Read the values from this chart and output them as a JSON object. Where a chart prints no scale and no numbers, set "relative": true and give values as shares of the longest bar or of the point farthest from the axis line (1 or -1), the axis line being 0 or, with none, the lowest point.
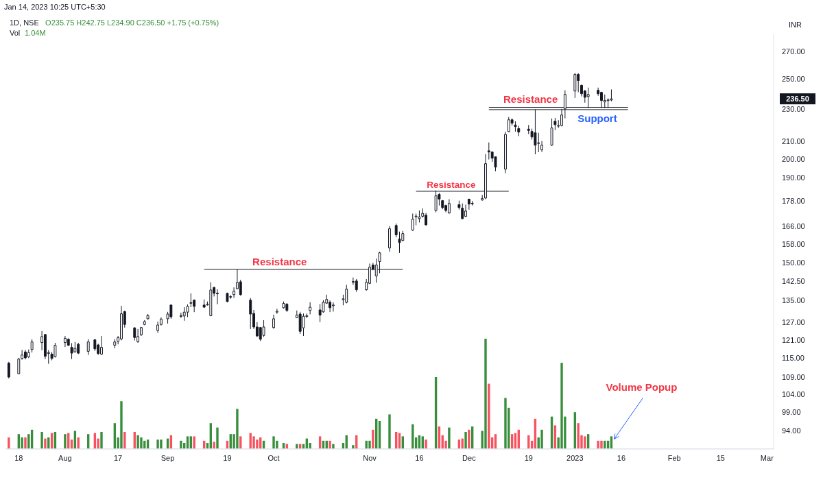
{
  "chart_data": [
    {
      "type": "candlestick",
      "title": "1D, NSE",
      "subtitle": "O235.75 H242.75 L234.90 C236.50 +1.75 (+0.75%)",
      "ylabel": "INR",
      "log": true,
      "xlim": [
        "2022-07-14",
        "2023-03-03"
      ],
      "ylim": [
        89.3,
        283
      ],
      "xticks": [
        {
          "value": "2022-07-18",
          "label": "18"
        },
        {
          "value": "2022-08-01",
          "label": "Aug"
        },
        {
          "value": "2022-08-17",
          "label": "17"
        },
        {
          "value": "2022-09-01",
          "label": "Sep"
        },
        {
          "value": "2022-09-19",
          "label": "19"
        },
        {
          "value": "2022-10-03",
          "label": "Oct"
        },
        {
          "value": "2022-11-01",
          "label": "Nov"
        },
        {
          "value": "2022-11-16",
          "label": "16"
        },
        {
          "value": "2022-12-01",
          "label": "Dec"
        },
        {
          "value": "2022-12-19",
          "label": "19"
        },
        {
          "value": "2023-01-02",
          "label": "2023"
        },
        {
          "value": "2023-01-16",
          "label": "16"
        },
        {
          "value": "2023-02-01",
          "label": "Feb"
        },
        {
          "value": "2023-02-15",
          "label": "15"
        },
        {
          "value": "2023-03-01",
          "label": "Mar"
        }
      ],
      "yticks": [
        {
          "value": 94,
          "label": "94.00"
        },
        {
          "value": 99,
          "label": "99.00"
        },
        {
          "value": 104,
          "label": "104.00"
        },
        {
          "value": 109,
          "label": "109.00"
        },
        {
          "value": 115,
          "label": "115.00"
        },
        {
          "value": 121,
          "label": "121.00"
        },
        {
          "value": 127,
          "label": "127.00"
        },
        {
          "value": 135,
          "label": "135.00"
        },
        {
          "value": 142.5,
          "label": "142.50"
        },
        {
          "value": 150,
          "label": "150.00"
        },
        {
          "value": 158,
          "label": "158.00"
        },
        {
          "value": 166,
          "label": "166.00"
        },
        {
          "value": 178,
          "label": "178.00"
        },
        {
          "value": 190,
          "label": "190.00"
        },
        {
          "value": 200,
          "label": "200.00"
        },
        {
          "value": 210,
          "label": "210.00"
        },
        {
          "value": 230,
          "label": "230.00"
        },
        {
          "value": 250,
          "label": "250.00"
        },
        {
          "value": 270,
          "label": "270.00"
        }
      ],
      "x": [
        "2022-07-15",
        "2022-07-18",
        "2022-07-19",
        "2022-07-20",
        "2022-07-21",
        "2022-07-22",
        "2022-07-25",
        "2022-07-26",
        "2022-07-27",
        "2022-07-28",
        "2022-07-29",
        "2022-08-01",
        "2022-08-02",
        "2022-08-03",
        "2022-08-04",
        "2022-08-05",
        "2022-08-08",
        "2022-08-10",
        "2022-08-11",
        "2022-08-12",
        "2022-08-16",
        "2022-08-17",
        "2022-08-18",
        "2022-08-19",
        "2022-08-22",
        "2022-08-23",
        "2022-08-24",
        "2022-08-25",
        "2022-08-26",
        "2022-08-29",
        "2022-08-30",
        "2022-09-01",
        "2022-09-02",
        "2022-09-05",
        "2022-09-06",
        "2022-09-07",
        "2022-09-08",
        "2022-09-09",
        "2022-09-12",
        "2022-09-13",
        "2022-09-14",
        "2022-09-15",
        "2022-09-16",
        "2022-09-19",
        "2022-09-20",
        "2022-09-21",
        "2022-09-22",
        "2022-09-23",
        "2022-09-26",
        "2022-09-27",
        "2022-09-28",
        "2022-09-29",
        "2022-09-30",
        "2022-10-03",
        "2022-10-04",
        "2022-10-06",
        "2022-10-07",
        "2022-10-10",
        "2022-10-11",
        "2022-10-12",
        "2022-10-13",
        "2022-10-14",
        "2022-10-17",
        "2022-10-18",
        "2022-10-19",
        "2022-10-20",
        "2022-10-21",
        "2022-10-24",
        "2022-10-25",
        "2022-10-27",
        "2022-10-28",
        "2022-10-31",
        "2022-11-01",
        "2022-11-02",
        "2022-11-03",
        "2022-11-04",
        "2022-11-07",
        "2022-11-09",
        "2022-11-10",
        "2022-11-11",
        "2022-11-14",
        "2022-11-15",
        "2022-11-16",
        "2022-11-17",
        "2022-11-18",
        "2022-11-21",
        "2022-11-22",
        "2022-11-23",
        "2022-11-24",
        "2022-11-25",
        "2022-11-28",
        "2022-11-29",
        "2022-11-30",
        "2022-12-01",
        "2022-12-02",
        "2022-12-05",
        "2022-12-06",
        "2022-12-07",
        "2022-12-08",
        "2022-12-09",
        "2022-12-12",
        "2022-12-13",
        "2022-12-14",
        "2022-12-15",
        "2022-12-16",
        "2022-12-19",
        "2022-12-20",
        "2022-12-21",
        "2022-12-22",
        "2022-12-23",
        "2022-12-26",
        "2022-12-27",
        "2022-12-28",
        "2022-12-29",
        "2022-12-30",
        "2023-01-02",
        "2023-01-03",
        "2023-01-04",
        "2023-01-05",
        "2023-01-06",
        "2023-01-09",
        "2023-01-10",
        "2023-01-11",
        "2023-01-12",
        "2023-01-13"
      ],
      "ohlc": [
        [
          113.4,
          113.8,
          108.7,
          109.1
        ],
        [
          110.1,
          115.1,
          110.1,
          114.7
        ],
        [
          114.9,
          117.6,
          114.5,
          116.0
        ],
        [
          117.0,
          117.6,
          114.6,
          115.1
        ],
        [
          115.4,
          117.8,
          115.0,
          116.8
        ],
        [
          117.8,
          121.2,
          116.8,
          120.3
        ],
        [
          120.1,
          124.0,
          117.5,
          122.1
        ],
        [
          122.8,
          123.0,
          114.7,
          115.6
        ],
        [
          116.5,
          117.6,
          113.2,
          116.8
        ],
        [
          116.3,
          117.0,
          114.3,
          114.9
        ],
        [
          115.5,
          120.0,
          115.2,
          119.2
        ],
        [
          120.1,
          122.3,
          118.6,
          121.5
        ],
        [
          121.2,
          121.5,
          118.9,
          119.2
        ],
        [
          118.5,
          119.9,
          114.7,
          116.6
        ],
        [
          117.0,
          120.3,
          116.8,
          118.2
        ],
        [
          119.5,
          120.0,
          116.3,
          116.6
        ],
        [
          117.2,
          121.2,
          116.0,
          120.3
        ],
        [
          121.0,
          121.3,
          117.3,
          118.0
        ],
        [
          119.3,
          119.7,
          116.0,
          116.5
        ],
        [
          116.3,
          122.3,
          116.0,
          118.5
        ],
        [
          119.2,
          121.2,
          118.2,
          120.3
        ],
        [
          120.5,
          122.3,
          119.5,
          121.7
        ],
        [
          121.3,
          133.0,
          120.8,
          130.1
        ],
        [
          130.9,
          131.2,
          125.2,
          126.3
        ],
        [
          125.1,
          125.3,
          120.8,
          121.8
        ],
        [
          120.4,
          124.7,
          120.0,
          122.1
        ],
        [
          122.7,
          125.4,
          122.3,
          125.2
        ],
        [
          126.3,
          127.8,
          126.0,
          127.3
        ],
        [
          128.3,
          130.0,
          128.0,
          129.5
        ],
        [
          124.2,
          127.3,
          123.4,
          126.1
        ],
        [
          126.3,
          128.8,
          125.9,
          128.2
        ],
        [
          128.3,
          130.8,
          126.6,
          130.0
        ],
        [
          133.3,
          133.5,
          128.3,
          129.0
        ],
        [
          129.2,
          130.5,
          128.6,
          129.4
        ],
        [
          129.3,
          132.5,
          127.6,
          130.7
        ],
        [
          130.7,
          133.5,
          128.9,
          132.8
        ],
        [
          134.0,
          137.7,
          132.5,
          134.2
        ],
        [
          135.1,
          135.4,
          130.7,
          132.8
        ],
        [
          133.3,
          135.4,
          132.3,
          132.5
        ],
        [
          133.5,
          134.6,
          133.1,
          133.6
        ],
        [
          129.4,
          142.0,
          129.2,
          139.0
        ],
        [
          140.0,
          140.2,
          136.5,
          137.7
        ],
        [
          137.5,
          139.3,
          133.6,
          137.8
        ],
        [
          137.7,
          138.0,
          134.3,
          134.6
        ],
        [
          136.3,
          137.0,
          135.6,
          136.5
        ],
        [
          137.2,
          140.0,
          136.0,
          138.5
        ],
        [
          139.5,
          147.2,
          139.3,
          141.9
        ],
        [
          142.2,
          143.0,
          136.8,
          137.2
        ],
        [
          135.1,
          135.9,
          124.7,
          130.0
        ],
        [
          130.2,
          131.5,
          124.7,
          125.4
        ],
        [
          125.4,
          127.1,
          122.0,
          122.3
        ],
        [
          125.2,
          125.4,
          120.6,
          121.2
        ],
        [
          122.5,
          127.8,
          122.0,
          125.4
        ],
        [
          125.2,
          129.8,
          124.8,
          128.3
        ],
        [
          130.7,
          131.9,
          130.1,
          131.0
        ],
        [
          132.3,
          134.6,
          132.0,
          133.9
        ],
        [
          133.6,
          134.0,
          130.8,
          131.3
        ],
        [
          128.7,
          131.3,
          128.5,
          129.6
        ],
        [
          130.0,
          130.8,
          123.0,
          123.9
        ],
        [
          125.1,
          130.2,
          122.3,
          129.2
        ],
        [
          129.1,
          130.2,
          128.6,
          129.4
        ],
        [
          131.3,
          134.3,
          129.9,
          132.5
        ],
        [
          131.5,
          133.7,
          127.1,
          129.6
        ],
        [
          130.8,
          135.1,
          130.5,
          134.3
        ],
        [
          134.0,
          137.2,
          133.7,
          135.4
        ],
        [
          134.3,
          135.0,
          130.7,
          132.3
        ],
        [
          133.2,
          134.3,
          130.9,
          133.3
        ],
        [
          135.3,
          137.2,
          133.2,
          135.6
        ],
        [
          134.3,
          141.0,
          133.9,
          139.3
        ],
        [
          142.0,
          143.9,
          141.0,
          142.3
        ],
        [
          142.5,
          143.3,
          138.3,
          139.1
        ],
        [
          139.1,
          143.3,
          138.7,
          142.0
        ],
        [
          141.6,
          149.6,
          141.3,
          148.1
        ],
        [
          149.0,
          149.9,
          146.8,
          147.3
        ],
        [
          144.5,
          151.7,
          141.8,
          149.0
        ],
        [
          150.4,
          154.6,
          145.6,
          154.1
        ],
        [
          156.2,
          166.0,
          154.6,
          164.8
        ],
        [
          166.3,
          167.2,
          160.9,
          162.0
        ],
        [
          160.1,
          163.5,
          154.1,
          158.6
        ],
        [
          159.5,
          163.8,
          159.1,
          162.6
        ],
        [
          164.2,
          171.9,
          163.8,
          169.2
        ],
        [
          170.4,
          171.9,
          166.4,
          170.7
        ],
        [
          169.5,
          173.4,
          167.7,
          170.3
        ],
        [
          170.6,
          174.4,
          170.0,
          172.0
        ],
        [
          171.1,
          172.2,
          166.2,
          166.6
        ],
        [
          173.4,
          183.3,
          172.5,
          180.6
        ],
        [
          181.3,
          182.0,
          175.8,
          179.0
        ],
        [
          178.2,
          178.5,
          174.0,
          174.8
        ],
        [
          175.8,
          176.2,
          172.5,
          173.4
        ],
        [
          172.2,
          178.9,
          171.8,
          176.8
        ],
        [
          176.2,
          178.2,
          173.8,
          174.8
        ],
        [
          174.5,
          176.8,
          169.2,
          169.5
        ],
        [
          170.6,
          176.2,
          170.3,
          173.1
        ],
        [
          178.9,
          179.2,
          173.8,
          176.5
        ],
        [
          176.7,
          178.0,
          175.8,
          176.9
        ],
        [
          178.5,
          181.0,
          178.2,
          179.2
        ],
        [
          179.5,
          202.8,
          178.9,
          197.5
        ],
        [
          204.7,
          209.5,
          199.8,
          204.0
        ],
        [
          204.0,
          204.3,
          198.5,
          200.5
        ],
        [
          201.3,
          201.3,
          193.4,
          195.6
        ],
        [
          194.5,
          215.8,
          192.3,
          214.2
        ],
        [
          215.9,
          224.8,
          215.5,
          223.1
        ],
        [
          223.1,
          224.0,
          219.5,
          221.0
        ],
        [
          219.9,
          222.2,
          215.9,
          218.9
        ],
        [
          217.7,
          219.3,
          213.2,
          215.6
        ],
        [
          217.4,
          219.9,
          214.4,
          216.6
        ],
        [
          216.0,
          217.7,
          211.2,
          212.7
        ],
        [
          215.2,
          229.6,
          202.7,
          207.9
        ],
        [
          208.9,
          215.2,
          203.9,
          209.3
        ],
        [
          205.2,
          210.3,
          204.0,
          207.9
        ],
        [
          207.9,
          223.9,
          207.5,
          218.1
        ],
        [
          222.2,
          224.3,
          216.8,
          220.1
        ],
        [
          219.3,
          222.9,
          218.1,
          219.6
        ],
        [
          219.6,
          230.0,
          219.0,
          226.1
        ],
        [
          230.0,
          242.2,
          224.0,
          239.4
        ],
        [
          241.7,
          254.1,
          237.1,
          253.1
        ],
        [
          253.1,
          254.0,
          240.9,
          248.8
        ],
        [
          245.6,
          246.0,
          238.1,
          239.9
        ],
        [
          241.7,
          242.5,
          234.0,
          237.5
        ],
        [
          238.0,
          244.0,
          230.5,
          239.4
        ],
        [
          242.2,
          244.0,
          238.5,
          239.9
        ],
        [
          240.8,
          241.2,
          230.5,
          235.4
        ],
        [
          234.5,
          239.4,
          230.5,
          235.4
        ],
        [
          235.4,
          236.8,
          230.5,
          235.8
        ],
        [
          235.75,
          242.75,
          234.9,
          236.5
        ]
      ],
      "series": [
        {
          "type": "line",
          "name": "Resistance",
          "x": [
            "2022-09-12",
            "2022-11-11"
          ],
          "values": [
            147.2,
            147.2
          ],
          "color": "#131722"
        },
        {
          "type": "line",
          "name": "Resistance",
          "x": [
            "2022-11-15",
            "2022-12-13"
          ],
          "values": [
            182.9,
            182.9
          ],
          "color": "#131722"
        },
        {
          "type": "line",
          "name": "Resistance",
          "x": [
            "2022-12-07",
            "2023-01-18"
          ],
          "values": [
            231.0,
            231.0
          ],
          "color": "#131722"
        },
        {
          "type": "line",
          "name": "Support",
          "x": [
            "2022-12-07",
            "2023-01-18"
          ],
          "values": [
            229.5,
            229.5
          ],
          "color": "#131722"
        }
      ],
      "annotations": [
        "Jan 14, 2023 10:25 UTC+5:30",
        "Volume Popup",
        "236.50"
      ]
    },
    {
      "type": "bar",
      "title": "Vol",
      "relative": true,
      "tick_labels": false,
      "xlim": [
        "2022-07-14",
        "2023-03-03"
      ],
      "annotations": [
        "1.04M"
      ],
      "x": [
        "2022-07-15",
        "2022-07-18",
        "2022-07-19",
        "2022-07-20",
        "2022-07-21",
        "2022-07-22",
        "2022-07-25",
        "2022-07-26",
        "2022-07-27",
        "2022-07-28",
        "2022-07-29",
        "2022-08-01",
        "2022-08-02",
        "2022-08-03",
        "2022-08-04",
        "2022-08-05",
        "2022-08-08",
        "2022-08-10",
        "2022-08-11",
        "2022-08-12",
        "2022-08-16",
        "2022-08-17",
        "2022-08-18",
        "2022-08-19",
        "2022-08-22",
        "2022-08-23",
        "2022-08-24",
        "2022-08-25",
        "2022-08-26",
        "2022-08-29",
        "2022-08-30",
        "2022-09-01",
        "2022-09-02",
        "2022-09-05",
        "2022-09-06",
        "2022-09-07",
        "2022-09-08",
        "2022-09-09",
        "2022-09-12",
        "2022-09-13",
        "2022-09-14",
        "2022-09-15",
        "2022-09-16",
        "2022-09-19",
        "2022-09-20",
        "2022-09-21",
        "2022-09-22",
        "2022-09-23",
        "2022-09-26",
        "2022-09-27",
        "2022-09-28",
        "2022-09-29",
        "2022-09-30",
        "2022-10-03",
        "2022-10-04",
        "2022-10-06",
        "2022-10-07",
        "2022-10-10",
        "2022-10-11",
        "2022-10-12",
        "2022-10-13",
        "2022-10-14",
        "2022-10-17",
        "2022-10-18",
        "2022-10-19",
        "2022-10-20",
        "2022-10-21",
        "2022-10-24",
        "2022-10-25",
        "2022-10-27",
        "2022-10-28",
        "2022-10-31",
        "2022-11-01",
        "2022-11-02",
        "2022-11-03",
        "2022-11-04",
        "2022-11-07",
        "2022-11-09",
        "2022-11-10",
        "2022-11-11",
        "2022-11-14",
        "2022-11-15",
        "2022-11-16",
        "2022-11-17",
        "2022-11-18",
        "2022-11-21",
        "2022-11-22",
        "2022-11-23",
        "2022-11-24",
        "2022-11-25",
        "2022-11-28",
        "2022-11-29",
        "2022-11-30",
        "2022-12-01",
        "2022-12-02",
        "2022-12-05",
        "2022-12-06",
        "2022-12-07",
        "2022-12-08",
        "2022-12-09",
        "2022-12-12",
        "2022-12-13",
        "2022-12-14",
        "2022-12-15",
        "2022-12-16",
        "2022-12-19",
        "2022-12-20",
        "2022-12-21",
        "2022-12-22",
        "2022-12-23",
        "2022-12-26",
        "2022-12-27",
        "2022-12-28",
        "2022-12-29",
        "2022-12-30",
        "2023-01-02",
        "2023-01-03",
        "2023-01-04",
        "2023-01-05",
        "2023-01-06",
        "2023-01-09",
        "2023-01-10",
        "2023-01-11",
        "2023-01-12",
        "2023-01-13"
      ],
      "values": [
        0.1,
        0.13,
        0.1,
        0.1,
        0.13,
        0.17,
        0.15,
        0.09,
        0.1,
        0.14,
        0.15,
        0.13,
        0.14,
        0.08,
        0.16,
        0.1,
        0.13,
        0.14,
        0.09,
        0.15,
        0.23,
        0.1,
        0.43,
        0.15,
        0.15,
        0.12,
        0.1,
        0.07,
        0.08,
        0.08,
        0.08,
        0.09,
        0.12,
        0.07,
        0.05,
        0.11,
        0.11,
        0.11,
        0.07,
        0.05,
        0.23,
        0.06,
        0.19,
        0.07,
        0.13,
        0.13,
        0.36,
        0.11,
        0.14,
        0.11,
        0.08,
        0.1,
        0.07,
        0.11,
        0.07,
        0.05,
        0.04,
        0.04,
        0.04,
        0.04,
        0.09,
        0.05,
        0.11,
        0.07,
        0.07,
        0.07,
        0.04,
        0.05,
        0.12,
        0.03,
        0.12,
        0.07,
        0.07,
        0.17,
        0.27,
        0.25,
        0.31,
        0.15,
        0.14,
        0.11,
        0.22,
        0.1,
        0.12,
        0.11,
        0.08,
        0.65,
        0.2,
        0.12,
        0.07,
        0.19,
        0.08,
        0.09,
        0.15,
        0.17,
        0.2,
        0.16,
        1,
        0.59,
        0.1,
        0.13,
        0.46,
        0.37,
        0.13,
        0.14,
        0.17,
        0.12,
        0.07,
        0.27,
        0.1,
        0.17,
        0.29,
        0.21,
        0.1,
        0.78,
        0.29,
        0.33,
        0.23,
        0.12,
        0.11,
        0.13,
        0.07,
        0.07,
        0.07,
        0.07,
        0.11
      ],
      "colors": [
        "#f7525f",
        "#388e3c",
        "#388e3c",
        "#f7525f",
        "#388e3c",
        "#388e3c",
        "#388e3c",
        "#f7525f",
        "#388e3c",
        "#f7525f",
        "#388e3c",
        "#388e3c",
        "#f7525f",
        "#f7525f",
        "#388e3c",
        "#f7525f",
        "#388e3c",
        "#f7525f",
        "#f7525f",
        "#388e3c",
        "#388e3c",
        "#388e3c",
        "#388e3c",
        "#f7525f",
        "#f7525f",
        "#388e3c",
        "#388e3c",
        "#388e3c",
        "#388e3c",
        "#388e3c",
        "#388e3c",
        "#388e3c",
        "#f7525f",
        "#388e3c",
        "#388e3c",
        "#388e3c",
        "#388e3c",
        "#f7525f",
        "#f7525f",
        "#388e3c",
        "#388e3c",
        "#f7525f",
        "#388e3c",
        "#f7525f",
        "#388e3c",
        "#388e3c",
        "#388e3c",
        "#f7525f",
        "#f7525f",
        "#f7525f",
        "#f7525f",
        "#f7525f",
        "#388e3c",
        "#388e3c",
        "#388e3c",
        "#388e3c",
        "#f7525f",
        "#388e3c",
        "#f7525f",
        "#388e3c",
        "#388e3c",
        "#388e3c",
        "#f7525f",
        "#388e3c",
        "#388e3c",
        "#f7525f",
        "#388e3c",
        "#388e3c",
        "#388e3c",
        "#388e3c",
        "#f7525f",
        "#388e3c",
        "#388e3c",
        "#f7525f",
        "#388e3c",
        "#388e3c",
        "#388e3c",
        "#f7525f",
        "#f7525f",
        "#388e3c",
        "#388e3c",
        "#388e3c",
        "#388e3c",
        "#388e3c",
        "#f7525f",
        "#388e3c",
        "#f7525f",
        "#f7525f",
        "#f7525f",
        "#388e3c",
        "#f7525f",
        "#f7525f",
        "#388e3c",
        "#f7525f",
        "#388e3c",
        "#388e3c",
        "#388e3c",
        "#f7525f",
        "#f7525f",
        "#f7525f",
        "#388e3c",
        "#388e3c",
        "#f7525f",
        "#f7525f",
        "#f7525f",
        "#f7525f",
        "#f7525f",
        "#f7525f",
        "#388e3c",
        "#388e3c",
        "#388e3c",
        "#f7525f",
        "#388e3c",
        "#388e3c",
        "#388e3c",
        "#388e3c",
        "#f7525f",
        "#f7525f",
        "#f7525f",
        "#388e3c",
        "#f7525f",
        "#f7525f",
        "#388e3c",
        "#388e3c",
        "#388e3c"
      ]
    }
  ]
}
